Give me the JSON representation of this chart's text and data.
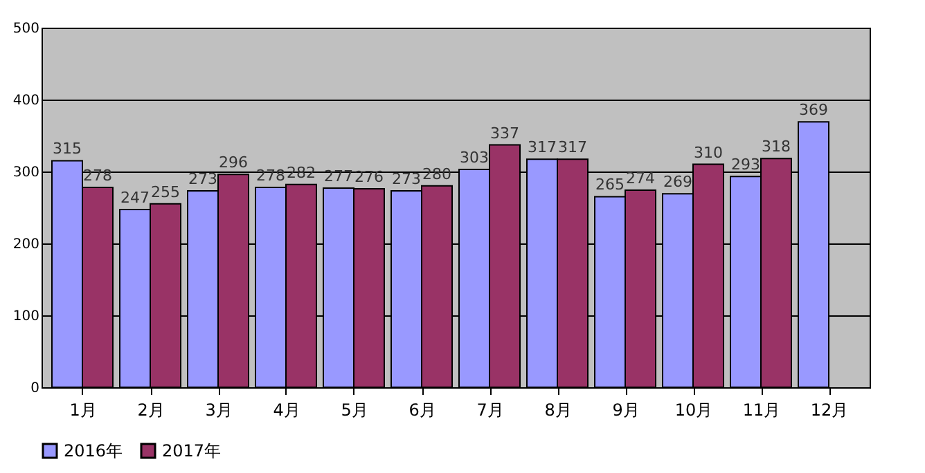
{
  "chart_data": {
    "type": "bar",
    "categories": [
      "1月",
      "2月",
      "3月",
      "4月",
      "5月",
      "6月",
      "7月",
      "8月",
      "9月",
      "10月",
      "11月",
      "12月"
    ],
    "series": [
      {
        "name": "2016年",
        "color": "#9999ff",
        "values": [
          315,
          247,
          273,
          278,
          277,
          273,
          303,
          317,
          265,
          269,
          293,
          369
        ]
      },
      {
        "name": "2017年",
        "color": "#993366",
        "values": [
          278,
          255,
          296,
          282,
          276,
          280,
          337,
          317,
          274,
          310,
          318,
          null
        ]
      }
    ],
    "ylim": [
      0,
      500
    ],
    "yticks": [
      0,
      100,
      200,
      300,
      400,
      500
    ],
    "grid": "y",
    "legend": "bottom",
    "data_labels": true
  }
}
